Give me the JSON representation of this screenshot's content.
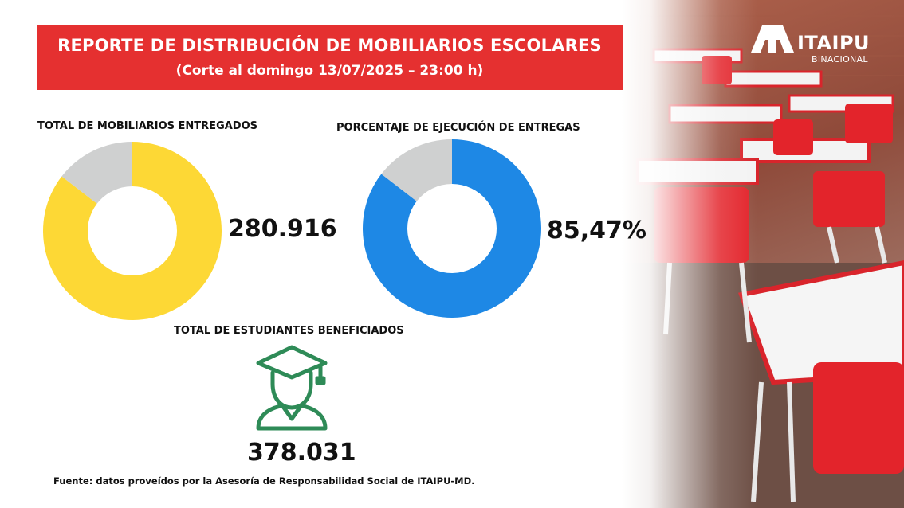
{
  "header": {
    "title": "REPORTE DE DISTRIBUCIÓN DE MOBILIARIOS ESCOLARES",
    "subtitle": "(Corte al domingo 13/07/2025 – 23:00 h)"
  },
  "logo": {
    "brand": "ITAIPU",
    "sub": "BINACIONAL"
  },
  "colors": {
    "header_bg": "#e53030",
    "yellow": "#fdd835",
    "blue": "#1e88e5",
    "grey": "#cfd0d0",
    "green": "#2e8b57"
  },
  "chart_data": [
    {
      "type": "pie",
      "title": "TOTAL DE MOBILIARIOS ENTREGADOS",
      "value_label": "280.916",
      "slices": [
        {
          "value": 85.47,
          "color": "#fdd835"
        },
        {
          "value": 14.53,
          "color": "#cfd0d0"
        }
      ]
    },
    {
      "type": "pie",
      "title": "PORCENTAJE DE EJECUCIÓN DE ENTREGAS",
      "value_label": "85,47%",
      "slices": [
        {
          "value": 85.47,
          "color": "#1e88e5"
        },
        {
          "value": 14.53,
          "color": "#cfd0d0"
        }
      ]
    }
  ],
  "students": {
    "title": "TOTAL DE ESTUDIANTES BENEFICIADOS",
    "value": "378.031",
    "icon": "graduate-icon"
  },
  "source": "Fuente: datos proveídos por la Asesoría de Responsabilidad Social de ITAIPU-MD."
}
